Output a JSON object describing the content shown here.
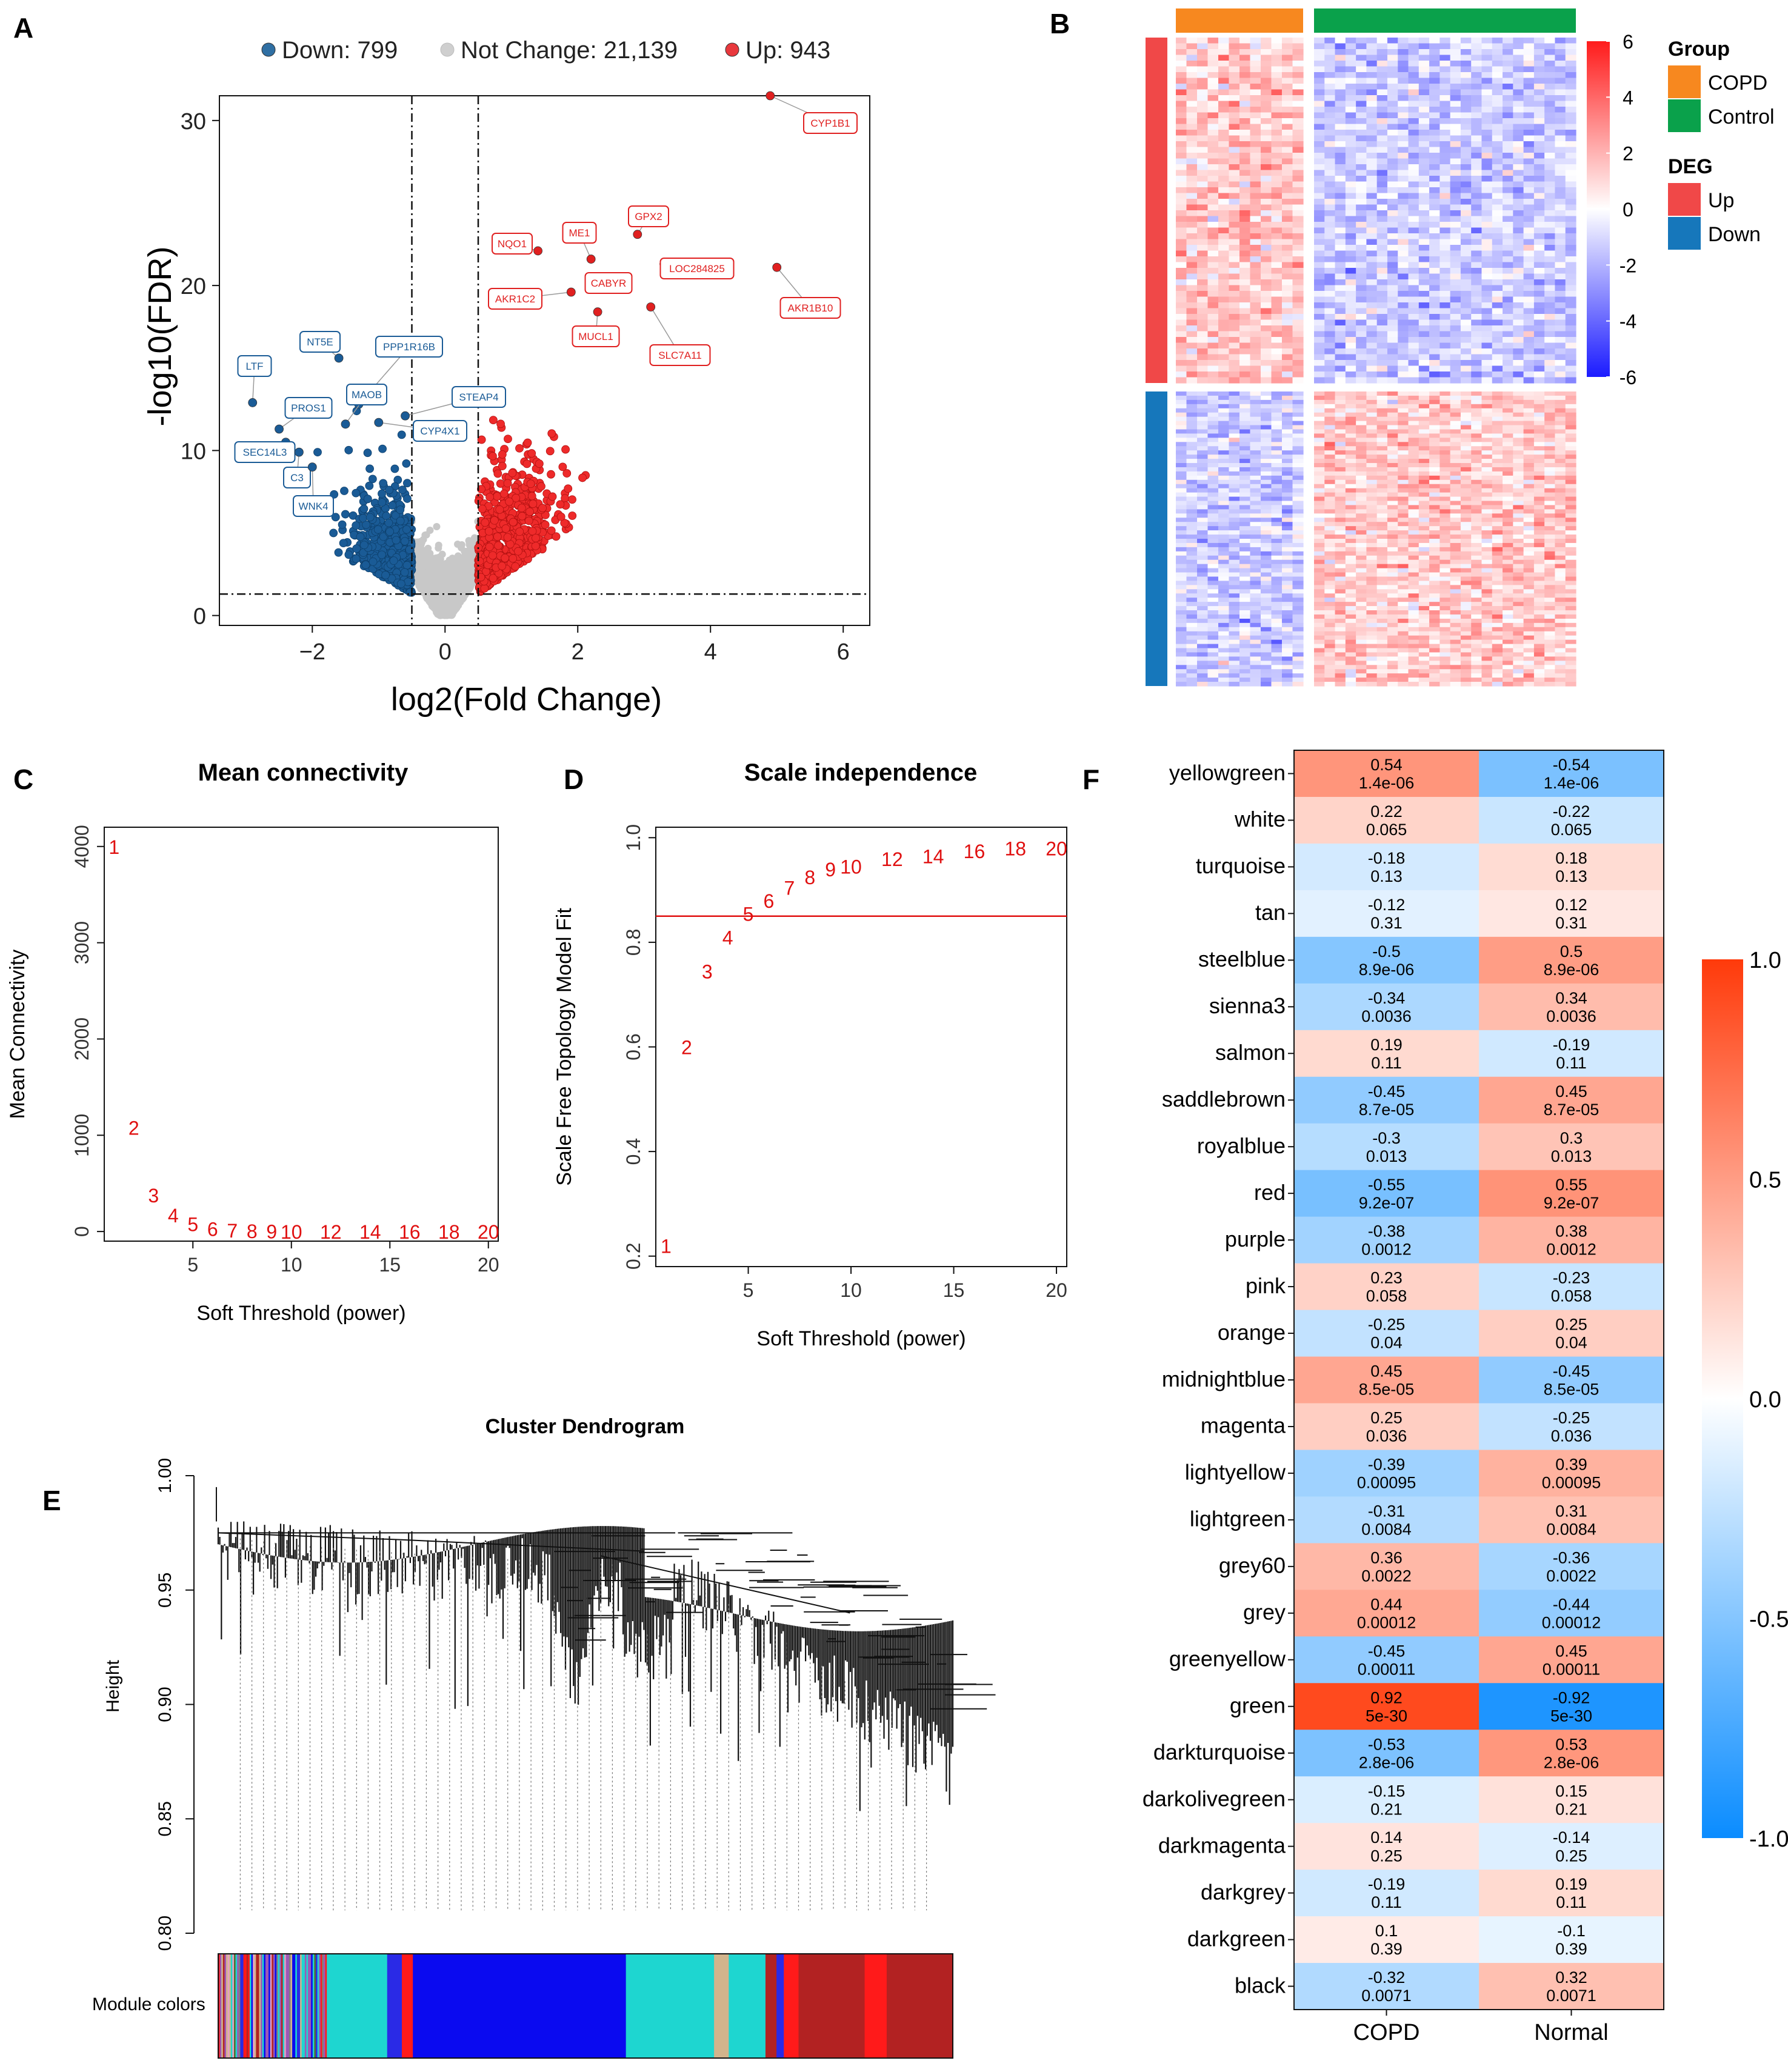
{
  "panels": {
    "A": "A",
    "B": "B",
    "C": "C",
    "D": "D",
    "E": "E",
    "F": "F"
  },
  "chart_data": [
    {
      "id": "A",
      "type": "scatter",
      "title": "",
      "xlabel": "log2(Fold Change)",
      "ylabel": "-log10(FDR)",
      "xlim": [
        -3.4,
        6.4
      ],
      "ylim": [
        -0.6,
        31.5
      ],
      "xticks": [
        -2,
        0,
        2,
        4,
        6
      ],
      "yticks": [
        0,
        10,
        20,
        30
      ],
      "thresholds": {
        "fc": [
          -0.5,
          0.5
        ],
        "fdr": 1.3
      },
      "legend": [
        {
          "key": "down",
          "text": "Down: 799",
          "color": "#2f6fa3"
        },
        {
          "key": "nc",
          "text": "Not Change: 21,139",
          "color": "#cfcfcf"
        },
        {
          "key": "up",
          "text": "Up: 943",
          "color": "#e8383d"
        }
      ],
      "colors": {
        "down": "#1a5b96",
        "up": "#ee2a2a",
        "nc": "#c8c8c8"
      },
      "labeled_genes": [
        {
          "name": "CYP1B1",
          "x": 4.9,
          "y": 31.5,
          "group": "up"
        },
        {
          "name": "GPX2",
          "x": 2.9,
          "y": 23.1,
          "group": "up"
        },
        {
          "name": "ME1",
          "x": 2.2,
          "y": 21.6,
          "group": "up"
        },
        {
          "name": "NQO1",
          "x": 1.4,
          "y": 22.1,
          "group": "up"
        },
        {
          "name": "LOC284825",
          "x": 3.3,
          "y": 21.3,
          "group": "up"
        },
        {
          "name": "CABYR",
          "x": 2.6,
          "y": 20.3,
          "group": "up"
        },
        {
          "name": "AKR1C2",
          "x": 1.9,
          "y": 19.6,
          "group": "up"
        },
        {
          "name": "AKR1B10",
          "x": 5.0,
          "y": 21.1,
          "group": "up"
        },
        {
          "name": "MUCL1",
          "x": 2.3,
          "y": 18.4,
          "group": "up"
        },
        {
          "name": "SLC7A11",
          "x": 3.1,
          "y": 18.7,
          "group": "up"
        },
        {
          "name": "LTF",
          "x": -2.9,
          "y": 12.9,
          "group": "down"
        },
        {
          "name": "NT5E",
          "x": -1.6,
          "y": 15.6,
          "group": "down"
        },
        {
          "name": "PPP1R16B",
          "x": -1.3,
          "y": 12.8,
          "group": "down"
        },
        {
          "name": "PROS1",
          "x": -2.5,
          "y": 11.3,
          "group": "down"
        },
        {
          "name": "MAOB",
          "x": -1.5,
          "y": 11.6,
          "group": "down"
        },
        {
          "name": "STEAP4",
          "x": -0.6,
          "y": 12.1,
          "group": "down"
        },
        {
          "name": "SEC14L3",
          "x": -2.4,
          "y": 10.5,
          "group": "down"
        },
        {
          "name": "C3",
          "x": -2.2,
          "y": 9.9,
          "group": "down"
        },
        {
          "name": "CYP4X1",
          "x": -1.0,
          "y": 11.7,
          "group": "down"
        },
        {
          "name": "WNK4",
          "x": -2.0,
          "y": 9.0,
          "group": "down"
        }
      ]
    },
    {
      "id": "B",
      "type": "heatmap",
      "columns": [
        {
          "group": "COPD",
          "count": 12
        },
        {
          "group": "Control",
          "count": 25
        }
      ],
      "rows": [
        {
          "group": "Up",
          "count": 943
        },
        {
          "group": "Down",
          "count": 799
        }
      ],
      "colorbar": {
        "min": -6,
        "max": 6,
        "ticks": [
          6,
          4,
          2,
          0,
          -2,
          -4,
          -6
        ],
        "low": "#1b1bff",
        "mid": "#ffffff",
        "high": "#ff1b1b"
      },
      "legend": {
        "group_title": "Group",
        "groups": [
          {
            "name": "COPD",
            "color": "#f7881f"
          },
          {
            "name": "Control",
            "color": "#0aa14b"
          }
        ],
        "deg_title": "DEG",
        "degs": [
          {
            "name": "Up",
            "color": "#f04848"
          },
          {
            "name": "Down",
            "color": "#1677bb"
          }
        ]
      }
    },
    {
      "id": "C",
      "type": "scatter",
      "title": "Mean connectivity",
      "xlabel": "Soft Threshold (power)",
      "ylabel": "Mean Connectivity",
      "xlim": [
        0.5,
        20.5
      ],
      "ylim": [
        -100,
        4200
      ],
      "xticks": [
        5,
        10,
        15,
        20
      ],
      "yticks": [
        0,
        1000,
        2000,
        3000,
        4000
      ],
      "points": [
        [
          1,
          4000
        ],
        [
          2,
          1080
        ],
        [
          3,
          380
        ],
        [
          4,
          170
        ],
        [
          5,
          80
        ],
        [
          6,
          30
        ],
        [
          7,
          12
        ],
        [
          8,
          6
        ],
        [
          9,
          3
        ],
        [
          10,
          2
        ],
        [
          12,
          1
        ],
        [
          14,
          0.5
        ],
        [
          16,
          0.3
        ],
        [
          18,
          0.2
        ],
        [
          20,
          0.1
        ]
      ],
      "labels": [
        "1",
        "2",
        "3",
        "4",
        "5",
        "6",
        "7",
        "8",
        "9",
        "10",
        "12",
        "14",
        "16",
        "18",
        "20"
      ]
    },
    {
      "id": "D",
      "type": "scatter",
      "title": "Scale independence",
      "xlabel": "Soft Threshold (power)",
      "ylabel": "Scale Free Topology Model Fit",
      "xlim": [
        0.5,
        20.5
      ],
      "ylim": [
        0.18,
        1.02
      ],
      "xticks": [
        5,
        10,
        15,
        20
      ],
      "yticks": [
        0.2,
        0.4,
        0.6,
        0.8,
        1.0
      ],
      "hline": 0.85,
      "points": [
        [
          1,
          0.22
        ],
        [
          2,
          0.6
        ],
        [
          3,
          0.745
        ],
        [
          4,
          0.81
        ],
        [
          5,
          0.855
        ],
        [
          6,
          0.88
        ],
        [
          7,
          0.905
        ],
        [
          8,
          0.925
        ],
        [
          9,
          0.94
        ],
        [
          10,
          0.945
        ],
        [
          12,
          0.96
        ],
        [
          14,
          0.965
        ],
        [
          16,
          0.975
        ],
        [
          18,
          0.98
        ],
        [
          20,
          0.98
        ]
      ],
      "labels": [
        "1",
        "2",
        "3",
        "4",
        "5",
        "6",
        "7",
        "8",
        "9",
        "10",
        "12",
        "14",
        "16",
        "18",
        "20"
      ]
    },
    {
      "id": "E",
      "type": "dendrogram",
      "title": "Cluster Dendrogram",
      "ylabel": "Height",
      "ylim": [
        0.8,
        1.0
      ],
      "yticks": [
        0.8,
        0.85,
        0.9,
        0.95,
        1.0
      ],
      "ytick_labels": [
        "0.80",
        "0.85",
        "0.90",
        "0.95",
        "1.00"
      ],
      "module_label": "Module colors",
      "module_segments": [
        {
          "color": "mixed",
          "w": 0.15
        },
        {
          "color": "#1ed6d0",
          "w": 0.08
        },
        {
          "color": "#2a2ae6",
          "w": 0.02
        },
        {
          "color": "#ff1a1a",
          "w": 0.015
        },
        {
          "color": "#0a0af0",
          "w": 0.29
        },
        {
          "color": "#1ed6d0",
          "w": 0.12
        },
        {
          "color": "#d2b48c",
          "w": 0.02
        },
        {
          "color": "#1ed6d0",
          "w": 0.05
        },
        {
          "color": "#b22222",
          "w": 0.015
        },
        {
          "color": "#2a2ae6",
          "w": 0.01
        },
        {
          "color": "#ff1a1a",
          "w": 0.02
        },
        {
          "color": "#b22222",
          "w": 0.09
        },
        {
          "color": "#ff1a1a",
          "w": 0.03
        },
        {
          "color": "#b22222",
          "w": 0.09
        }
      ]
    },
    {
      "id": "F",
      "type": "heatmap",
      "columns": [
        "COPD",
        "Normal"
      ],
      "colorbar": {
        "min": -1.0,
        "max": 1.0,
        "ticks": [
          "1.0",
          "0.5",
          "0.0",
          "-0.5",
          "-1.0"
        ],
        "low": "#0a8cff",
        "mid": "#ffffff",
        "high": "#ff3a0a"
      },
      "rows": [
        {
          "module": "yellowgreen",
          "r": 0.54,
          "p": "1.4e-06"
        },
        {
          "module": "white",
          "r": 0.22,
          "p": "0.065"
        },
        {
          "module": "turquoise",
          "r": -0.18,
          "p": "0.13"
        },
        {
          "module": "tan",
          "r": -0.12,
          "p": "0.31"
        },
        {
          "module": "steelblue",
          "r": -0.5,
          "p": "8.9e-06"
        },
        {
          "module": "sienna3",
          "r": -0.34,
          "p": "0.0036"
        },
        {
          "module": "salmon",
          "r": 0.19,
          "p": "0.11"
        },
        {
          "module": "saddlebrown",
          "r": -0.45,
          "p": "8.7e-05"
        },
        {
          "module": "royalblue",
          "r": -0.3,
          "p": "0.013"
        },
        {
          "module": "red",
          "r": -0.55,
          "p": "9.2e-07"
        },
        {
          "module": "purple",
          "r": -0.38,
          "p": "0.0012"
        },
        {
          "module": "pink",
          "r": 0.23,
          "p": "0.058"
        },
        {
          "module": "orange",
          "r": -0.25,
          "p": "0.04"
        },
        {
          "module": "midnightblue",
          "r": 0.45,
          "p": "8.5e-05"
        },
        {
          "module": "magenta",
          "r": 0.25,
          "p": "0.036"
        },
        {
          "module": "lightyellow",
          "r": -0.39,
          "p": "0.00095"
        },
        {
          "module": "lightgreen",
          "r": -0.31,
          "p": "0.0084"
        },
        {
          "module": "grey60",
          "r": 0.36,
          "p": "0.0022"
        },
        {
          "module": "grey",
          "r": 0.44,
          "p": "0.00012"
        },
        {
          "module": "greenyellow",
          "r": -0.45,
          "p": "0.00011"
        },
        {
          "module": "green",
          "r": 0.92,
          "p": "5e-30"
        },
        {
          "module": "darkturquoise",
          "r": -0.53,
          "p": "2.8e-06"
        },
        {
          "module": "darkolivegreen",
          "r": -0.15,
          "p": "0.21"
        },
        {
          "module": "darkmagenta",
          "r": 0.14,
          "p": "0.25"
        },
        {
          "module": "darkgrey",
          "r": -0.19,
          "p": "0.11"
        },
        {
          "module": "darkgreen",
          "r": 0.1,
          "p": "0.39"
        },
        {
          "module": "black",
          "r": -0.32,
          "p": "0.0071"
        }
      ]
    }
  ]
}
